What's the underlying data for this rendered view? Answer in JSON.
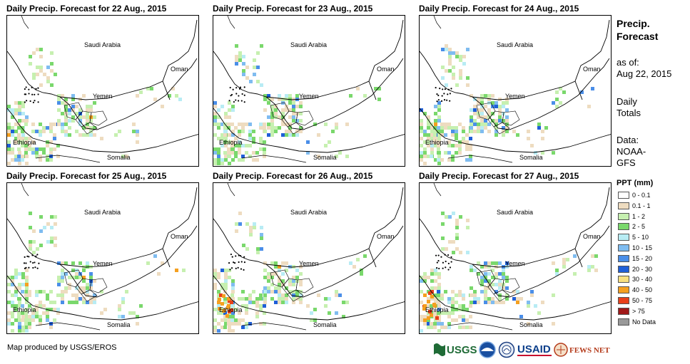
{
  "panels": [
    {
      "title": "Daily Precip. Forecast for 22 Aug., 2015"
    },
    {
      "title": "Daily Precip. Forecast for 23 Aug., 2015"
    },
    {
      "title": "Daily Precip. Forecast for 24 Aug., 2015"
    },
    {
      "title": "Daily Precip. Forecast for 25 Aug., 2015"
    },
    {
      "title": "Daily Precip. Forecast for 26 Aug., 2015"
    },
    {
      "title": "Daily Precip. Forecast for 27 Aug., 2015"
    }
  ],
  "map_labels": {
    "saudi": "Saudi Arabia",
    "oman": "Oman",
    "yemen": "Yemen",
    "ethiopia": "Ethiopia",
    "somalia": "Somalia"
  },
  "sidebar": {
    "title": "Precip.\nForecast",
    "as_of_label": "as of:",
    "as_of_date": "Aug 22, 2015",
    "daily_1": "Daily",
    "daily_2": "Totals",
    "data_label": "Data:",
    "data_1": "NOAA-",
    "data_2": "GFS"
  },
  "legend": {
    "title": "PPT (mm)",
    "items": [
      {
        "label": "0 - 0.1",
        "color": "#ffffff"
      },
      {
        "label": "0.1 - 1",
        "color": "#eedcc0"
      },
      {
        "label": "1 - 2",
        "color": "#c6f0b0"
      },
      {
        "label": "2 - 5",
        "color": "#7ad86c"
      },
      {
        "label": "5 - 10",
        "color": "#b8ecf4"
      },
      {
        "label": "10 - 15",
        "color": "#7fbcf0"
      },
      {
        "label": "15 - 20",
        "color": "#4a8ee8"
      },
      {
        "label": "20 - 30",
        "color": "#1f5fd8"
      },
      {
        "label": "30 - 40",
        "color": "#f8e080"
      },
      {
        "label": "40 - 50",
        "color": "#f5a020"
      },
      {
        "label": "50 - 75",
        "color": "#e8401a"
      },
      {
        "label": "> 75",
        "color": "#a01818"
      },
      {
        "label": "No Data",
        "color": "#999999"
      }
    ]
  },
  "credit": "Map produced by USGS/EROS",
  "logos": {
    "usgs": "USGS",
    "usaid": "USAID",
    "fews": "FEWS NET"
  }
}
